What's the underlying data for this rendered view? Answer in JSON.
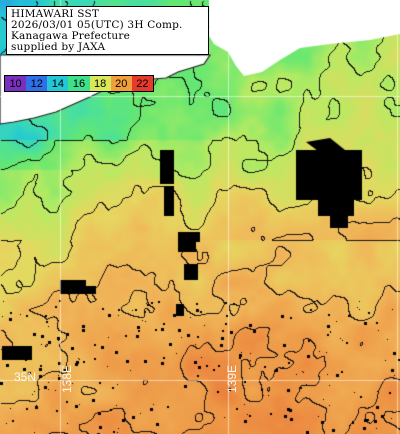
{
  "header": {
    "lines": [
      "HIMAWARI SST",
      "2026/03/01 05(UTC) 3H Comp.",
      "Kanagawa Prefecture",
      "supplied by JAXA"
    ]
  },
  "temperature_scale": {
    "values": [
      "10",
      "12",
      "14",
      "16",
      "18",
      "20",
      "22"
    ],
    "colors": [
      "#7a2fbf",
      "#2f6fe8",
      "#23c7d6",
      "#3ee08a",
      "#d8e85a",
      "#f0a03a",
      "#e83a2a"
    ]
  },
  "grid_labels": {
    "lat": "35N",
    "lon_west": "138E",
    "lon_east": "139E"
  },
  "map": {
    "land_color": "#ffffff",
    "no_data_color": "#000000",
    "contour_color": "#000000",
    "grid_color": "#ffffff"
  }
}
